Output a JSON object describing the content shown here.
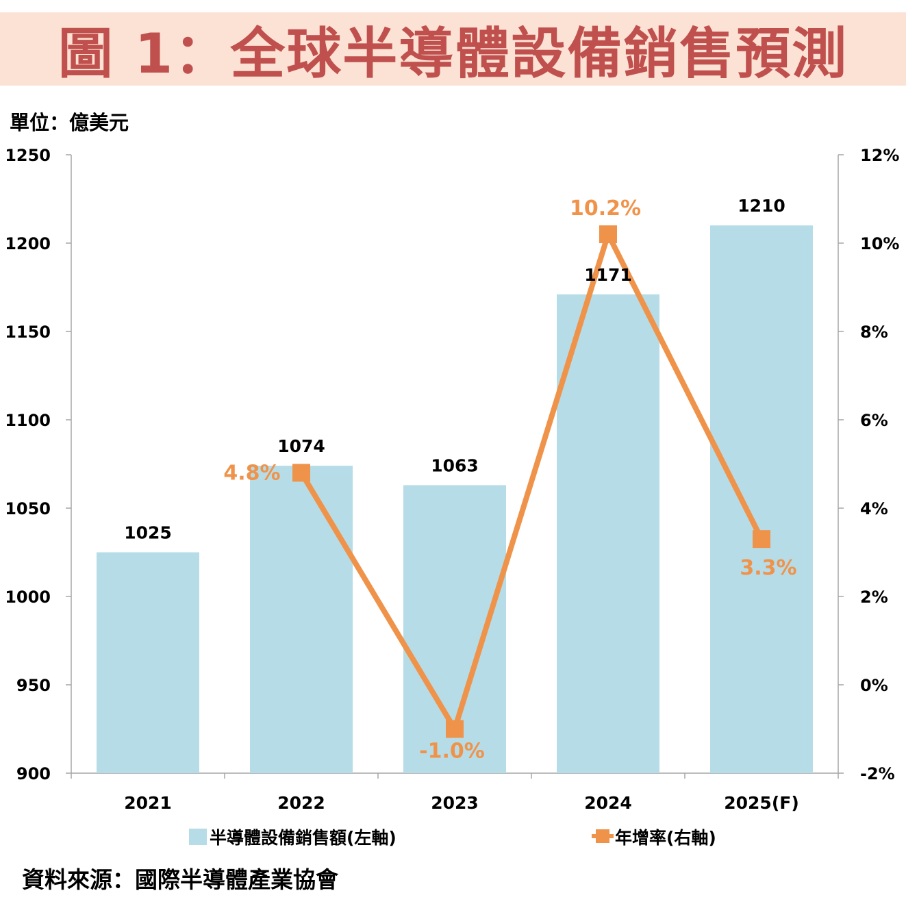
{
  "header": {
    "title": "圖 1：全球半導體設備銷售預測",
    "unit": "單位：億美元"
  },
  "footer": {
    "source": "資料來源：國際半導體產業協會"
  },
  "colors": {
    "bar": "#b6dce8",
    "line": "#f0934a",
    "title": "#c0504d",
    "title_bg": "#fbe2d5"
  },
  "chart_data": {
    "type": "bar",
    "categories": [
      "2021",
      "2022",
      "2023",
      "2024",
      "2025(F)"
    ],
    "series": [
      {
        "name": "半導體設備銷售額(左軸)",
        "type": "bar",
        "axis": "left",
        "values": [
          1025,
          1074,
          1063,
          1171,
          1210
        ],
        "labels": [
          "1025",
          "1074",
          "1063",
          "1171",
          "1210"
        ]
      },
      {
        "name": "年增率(右軸)",
        "type": "line",
        "axis": "right",
        "values": [
          null,
          4.8,
          -1.0,
          10.2,
          3.3
        ],
        "labels": [
          "",
          "4.8%",
          "-1.0%",
          "10.2%",
          "3.3%"
        ]
      }
    ],
    "left_axis": {
      "ylim": [
        900,
        1250
      ],
      "ticks": [
        "900",
        "950",
        "1000",
        "1050",
        "1100",
        "1150",
        "1200",
        "1250"
      ]
    },
    "right_axis": {
      "ylim": [
        -2,
        12
      ],
      "ticks": [
        "-2%",
        "0%",
        "2%",
        "4%",
        "6%",
        "8%",
        "10%",
        "12%"
      ]
    },
    "legend_position": "bottom",
    "grid": false
  }
}
